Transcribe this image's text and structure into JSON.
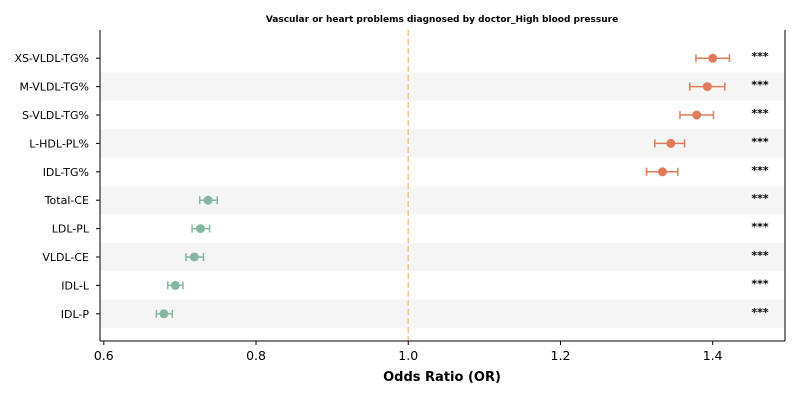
{
  "chart_data": {
    "type": "forest",
    "title": "Vascular or heart problems diagnosed by doctor_High blood pressure",
    "xlabel": "Odds Ratio (OR)",
    "xlim": [
      0.595,
      1.495
    ],
    "xticks": [
      0.6,
      0.8,
      1.0,
      1.2,
      1.4
    ],
    "xtick_labels": [
      "0.6",
      "0.8",
      "1.0",
      "1.2",
      "1.4"
    ],
    "reference_line": 1.0,
    "reference_color": "#f5c57d",
    "risk_color": "#e07b5a",
    "protective_color": "#86b6a0",
    "band_color": "#f5f5f5",
    "categories": [
      "XS-VLDL-TG%",
      "M-VLDL-TG%",
      "S-VLDL-TG%",
      "L-HDL-PL%",
      "IDL-TG%",
      "Total-CE",
      "LDL-PL",
      "VLDL-CE",
      "IDL-L",
      "IDL-P"
    ],
    "or": [
      1.4,
      1.393,
      1.379,
      1.345,
      1.334,
      0.737,
      0.727,
      0.719,
      0.694,
      0.679
    ],
    "ci_low": [
      1.378,
      1.37,
      1.357,
      1.324,
      1.313,
      0.726,
      0.716,
      0.708,
      0.684,
      0.669
    ],
    "ci_high": [
      1.422,
      1.416,
      1.401,
      1.363,
      1.354,
      0.749,
      0.739,
      0.731,
      0.704,
      0.69
    ],
    "significance": [
      "***",
      "***",
      "***",
      "***",
      "***",
      "***",
      "***",
      "***",
      "***",
      "***"
    ]
  }
}
